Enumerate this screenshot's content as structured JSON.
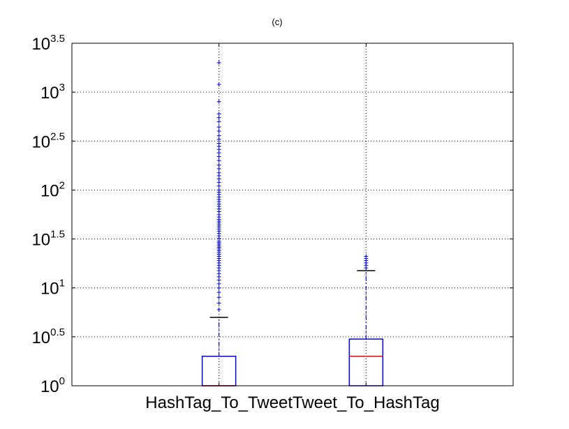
{
  "chart_data": {
    "type": "boxplot",
    "title": "(c)",
    "xlabel": "",
    "ylabel": "",
    "y_scale": "log10",
    "ylim": [
      1,
      3162.28
    ],
    "grid": true,
    "y_ticks": [
      {
        "value": 1,
        "base": "10",
        "exp": "0"
      },
      {
        "value": 3.162,
        "base": "10",
        "exp": "0.5"
      },
      {
        "value": 10,
        "base": "10",
        "exp": "1"
      },
      {
        "value": 31.62,
        "base": "10",
        "exp": "1.5"
      },
      {
        "value": 100,
        "base": "10",
        "exp": "2"
      },
      {
        "value": 316.2,
        "base": "10",
        "exp": "2.5"
      },
      {
        "value": 1000,
        "base": "10",
        "exp": "3"
      },
      {
        "value": 3162.28,
        "base": "10",
        "exp": "3.5"
      }
    ],
    "categories": [
      "HashTag_To_Tweet",
      "Tweet_To_HashTag"
    ],
    "boxes": [
      {
        "name": "HashTag_To_Tweet",
        "min": 1,
        "q1": 1,
        "median": 1,
        "q3": 2,
        "whisker_high": 5,
        "fliers": [
          6,
          7,
          8,
          9,
          10,
          11,
          12,
          13,
          14,
          15,
          16,
          17,
          18,
          19,
          20,
          21,
          22,
          23,
          24,
          25,
          26,
          27,
          28,
          29,
          30,
          32,
          34,
          36,
          38,
          40,
          42,
          44,
          46,
          48,
          50,
          53,
          56,
          60,
          64,
          68,
          72,
          76,
          80,
          85,
          90,
          95,
          100,
          110,
          120,
          130,
          140,
          150,
          165,
          180,
          200,
          220,
          240,
          260,
          280,
          300,
          330,
          360,
          400,
          440,
          500,
          550,
          600,
          800,
          1200,
          2000
        ]
      },
      {
        "name": "Tweet_To_HashTag",
        "min": 1,
        "q1": 1,
        "median": 2,
        "q3": 3,
        "whisker_high": 15,
        "fliers": [
          16,
          17,
          18,
          19,
          20,
          21
        ]
      }
    ],
    "colors": {
      "box": "#0000ff",
      "median": "#ff0000",
      "whisker": "#0000ff",
      "cap": "#000000",
      "flier": "#0000ff",
      "grid": "#000000",
      "axes": "#000000"
    }
  }
}
